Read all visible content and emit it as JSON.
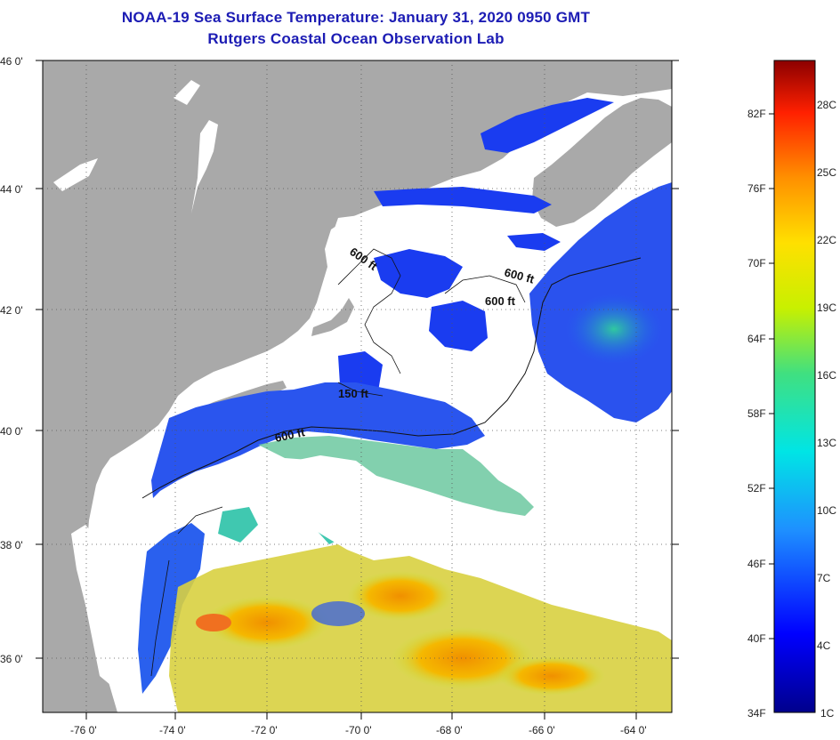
{
  "title": {
    "line1": "NOAA-19 Sea Surface Temperature:  January 31, 2020 0950 GMT",
    "line2": "Rutgers Coastal Ocean Observation Lab"
  },
  "map": {
    "lat_labels": [
      "46 0'",
      "44 0'",
      "42 0'",
      "40 0'",
      "38 0'",
      "36 0'"
    ],
    "lon_labels": [
      "-76 0'",
      "-74 0'",
      "-72 0'",
      "-70 0'",
      "-68 0'",
      "-66 0'",
      "-64 0'"
    ],
    "contour_labels": [
      "600 ft",
      "600 ft",
      "600 ft",
      "150 ft",
      "600 ft"
    ],
    "colors": {
      "land": "#a9a9a9",
      "cloud": "#ffffff",
      "cold": "#1a3cf0",
      "warm": "#f0a010"
    }
  },
  "colorbar": {
    "fahrenheit": [
      "82F",
      "76F",
      "70F",
      "64F",
      "58F",
      "52F",
      "46F",
      "40F",
      "34F"
    ],
    "celsius": [
      "28C",
      "25C",
      "22C",
      "19C",
      "16C",
      "13C",
      "10C",
      "7C",
      "4C",
      "1C"
    ]
  }
}
